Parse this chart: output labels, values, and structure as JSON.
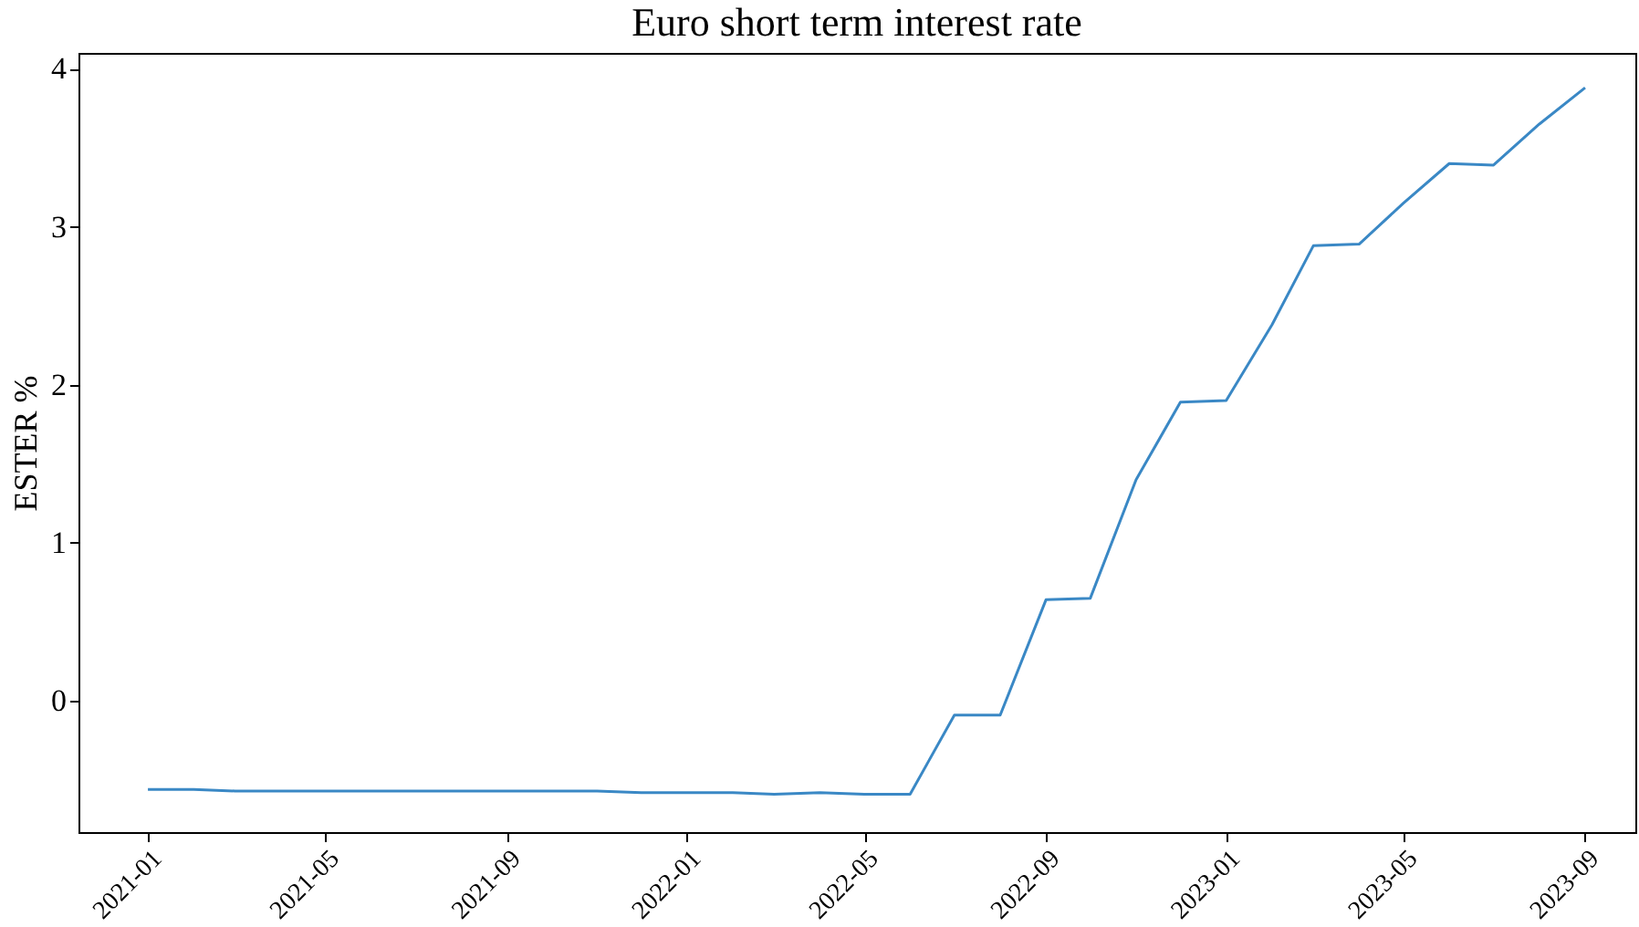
{
  "chart_data": {
    "type": "line",
    "title": "Euro short term interest rate",
    "ylabel": "ESTER %",
    "x": [
      "2021-01",
      "2021-02",
      "2021-03",
      "2021-04",
      "2021-05",
      "2021-06",
      "2021-07",
      "2021-08",
      "2021-09",
      "2021-10",
      "2021-11",
      "2021-12",
      "2022-01",
      "2022-02",
      "2022-03",
      "2022-04",
      "2022-05",
      "2022-06",
      "2022-07",
      "2022-08",
      "2022-09",
      "2022-10",
      "2022-11",
      "2022-12",
      "2023-01",
      "2023-02",
      "2023-03",
      "2023-04",
      "2023-05",
      "2023-06",
      "2023-07",
      "2023-08",
      "2023-09"
    ],
    "series": [
      {
        "color": "#3a88c5",
        "values": [
          -0.56,
          -0.56,
          -0.57,
          -0.57,
          -0.57,
          -0.57,
          -0.57,
          -0.57,
          -0.57,
          -0.57,
          -0.57,
          -0.58,
          -0.58,
          -0.58,
          -0.59,
          -0.58,
          -0.59,
          -0.59,
          -0.09,
          -0.09,
          0.64,
          0.65,
          1.4,
          1.89,
          1.9,
          2.38,
          2.88,
          2.89,
          3.15,
          3.4,
          3.39,
          3.65,
          3.88
        ]
      }
    ],
    "xlim": [
      "2020-11-15",
      "2023-10-05"
    ],
    "xticks": [
      "2021-01",
      "2021-05",
      "2021-09",
      "2022-01",
      "2022-05",
      "2022-09",
      "2023-01",
      "2023-05",
      "2023-09"
    ],
    "ylim": [
      -0.83,
      4.1
    ],
    "yticks": [
      0,
      1,
      2,
      3,
      4
    ],
    "grid": false,
    "legend": false,
    "marker": "none",
    "line_style": "solid"
  }
}
